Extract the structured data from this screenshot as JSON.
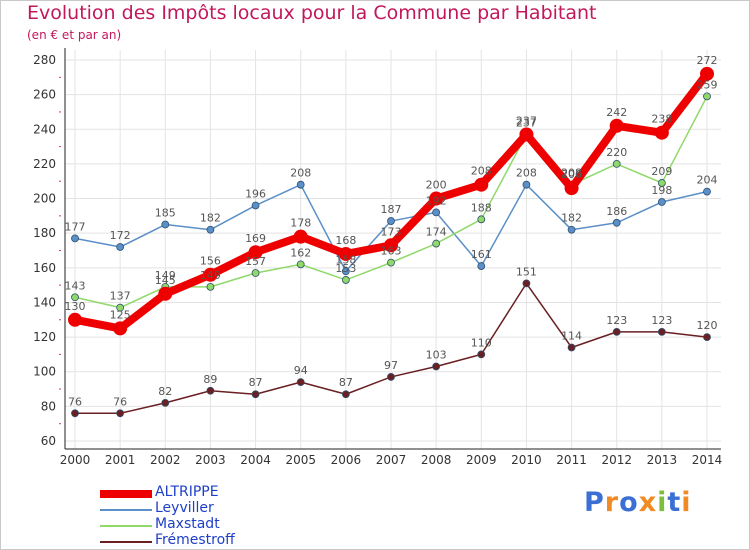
{
  "header": {
    "title": "Evolution des Impôts locaux pour la Commune par Habitant",
    "subtitle": "(en € et par an)"
  },
  "chart_data": {
    "type": "line",
    "x": [
      "2000",
      "2001",
      "2002",
      "2003",
      "2004",
      "2005",
      "2006",
      "2007",
      "2008",
      "2009",
      "2010",
      "2011",
      "2012",
      "2013",
      "2014"
    ],
    "ylim": [
      60,
      280
    ],
    "yticks": [
      60,
      80,
      100,
      120,
      140,
      160,
      180,
      200,
      220,
      240,
      260,
      280
    ],
    "grid": true,
    "legend_position": "bottom-left",
    "series": [
      {
        "name": "Leyviller",
        "color": "#5b8fc7",
        "values": [
          177,
          172,
          185,
          182,
          196,
          208,
          158,
          187,
          192,
          161,
          208,
          182,
          186,
          198,
          204
        ]
      },
      {
        "name": "Maxstadt",
        "color": "#8fd96a",
        "values": [
          143,
          137,
          149,
          149,
          157,
          162,
          153,
          163,
          174,
          188,
          237,
          208,
          220,
          209,
          259
        ]
      },
      {
        "name": "Frémestroff",
        "color": "#6a1f22",
        "values": [
          76,
          76,
          82,
          89,
          87,
          94,
          87,
          97,
          103,
          110,
          151,
          114,
          123,
          123,
          120
        ]
      },
      {
        "name": "ALTRIPPE",
        "color": "#ee0000",
        "values": [
          130,
          125,
          145,
          156,
          169,
          178,
          168,
          173,
          200,
          208,
          237,
          206,
          242,
          238,
          272
        ]
      }
    ],
    "legend_order": [
      "ALTRIPPE",
      "Leyviller",
      "Maxstadt",
      "Frémestroff"
    ]
  },
  "branding": {
    "logo_text": "Proxiti",
    "logo_colors": [
      "#3b6fd4",
      "#f08a24",
      "#3b6fd4",
      "#f08a24",
      "#7dbf3b",
      "#3b6fd4",
      "#f08a24"
    ]
  }
}
